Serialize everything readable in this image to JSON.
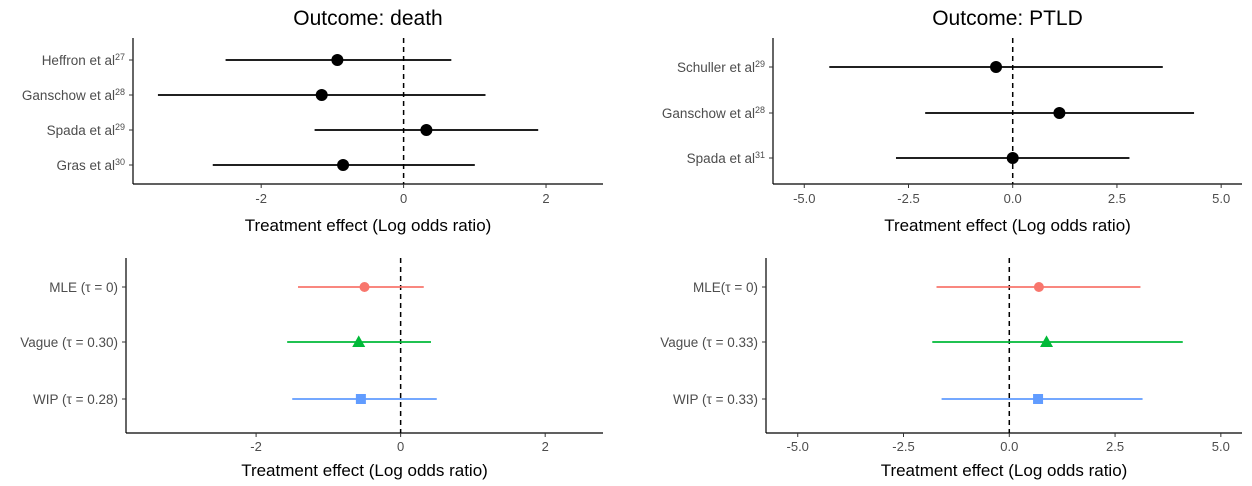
{
  "chart_data": [
    {
      "type": "forest",
      "title": "Outcome: death",
      "xlabel": "Treatment effect (Log odds ratio)",
      "xlim": [
        -3.8,
        2.8
      ],
      "xticks": [
        "-2",
        "0",
        "2"
      ],
      "xtick_values": [
        -2,
        0,
        2
      ],
      "reference_line": 0,
      "studies": [
        {
          "name": "Heffron et al",
          "sup": "27",
          "estimate": -0.93,
          "lower": -2.5,
          "upper": 0.67,
          "color": "#000000",
          "shape": "circle"
        },
        {
          "name": "Ganschow et al",
          "sup": "28",
          "estimate": -1.15,
          "lower": -3.45,
          "upper": 1.15,
          "color": "#000000",
          "shape": "circle"
        },
        {
          "name": "Spada et al",
          "sup": "29",
          "estimate": 0.32,
          "lower": -1.25,
          "upper": 1.89,
          "color": "#000000",
          "shape": "circle"
        },
        {
          "name": "Gras et al",
          "sup": "30",
          "estimate": -0.85,
          "lower": -2.68,
          "upper": 1.0,
          "color": "#000000",
          "shape": "circle"
        }
      ]
    },
    {
      "type": "forest",
      "title": "Outcome: PTLD",
      "xlabel": "Treatment effect (Log odds ratio)",
      "xlim": [
        -5.75,
        5.5
      ],
      "xticks": [
        "-5.0",
        "-2.5",
        "0.0",
        "2.5",
        "5.0"
      ],
      "xtick_values": [
        -5,
        -2.5,
        0,
        2.5,
        5
      ],
      "reference_line": 0,
      "studies": [
        {
          "name": "Schuller et al",
          "sup": "29",
          "estimate": -0.4,
          "lower": -4.4,
          "upper": 3.6,
          "color": "#000000",
          "shape": "circle"
        },
        {
          "name": "Ganschow et al",
          "sup": "28",
          "estimate": 1.12,
          "lower": -2.1,
          "upper": 4.35,
          "color": "#000000",
          "shape": "circle"
        },
        {
          "name": "Spada et al",
          "sup": "31",
          "estimate": 0.0,
          "lower": -2.8,
          "upper": 2.8,
          "color": "#000000",
          "shape": "circle"
        }
      ]
    },
    {
      "type": "forest",
      "title": "",
      "xlabel": "Treatment effect (Log odds ratio)",
      "xlim": [
        -3.8,
        2.8
      ],
      "xticks": [
        "-2",
        "0",
        "2"
      ],
      "xtick_values": [
        -2,
        0,
        2
      ],
      "reference_line": 0,
      "studies": [
        {
          "name": "MLE (τ = 0)",
          "sup": "",
          "estimate": -0.5,
          "lower": -1.42,
          "upper": 0.32,
          "color": "#f8766d",
          "shape": "circle"
        },
        {
          "name": "Vague (τ = 0.30)",
          "sup": "",
          "estimate": -0.58,
          "lower": -1.57,
          "upper": 0.42,
          "color": "#00ba38",
          "shape": "triangle"
        },
        {
          "name": "WIP (τ = 0.28)",
          "sup": "",
          "estimate": -0.55,
          "lower": -1.5,
          "upper": 0.5,
          "color": "#619cff",
          "shape": "square"
        }
      ]
    },
    {
      "type": "forest",
      "title": "",
      "xlabel": "Treatment effect (Log odds ratio)",
      "xlim": [
        -5.75,
        5.5
      ],
      "xticks": [
        "-5.0",
        "-2.5",
        "0.0",
        "2.5",
        "5.0"
      ],
      "xtick_values": [
        -5,
        -2.5,
        0,
        2.5,
        5
      ],
      "reference_line": 0,
      "studies": [
        {
          "name": "MLE(τ = 0)",
          "sup": "",
          "estimate": 0.7,
          "lower": -1.72,
          "upper": 3.1,
          "color": "#f8766d",
          "shape": "circle"
        },
        {
          "name": "Vague (τ = 0.33)",
          "sup": "",
          "estimate": 0.88,
          "lower": -1.82,
          "upper": 4.1,
          "color": "#00ba38",
          "shape": "triangle"
        },
        {
          "name": "WIP (τ = 0.33)",
          "sup": "",
          "estimate": 0.68,
          "lower": -1.6,
          "upper": 3.15,
          "color": "#619cff",
          "shape": "square"
        }
      ]
    }
  ]
}
